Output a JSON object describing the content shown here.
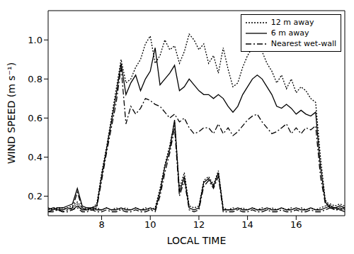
{
  "chart_data": {
    "type": "line",
    "xlabel": "LOCAL TIME",
    "ylabel": "WIND SPEED (m s⁻¹)",
    "legend": "upper right",
    "xlim": [
      5.8,
      18.0
    ],
    "xticks": [
      8,
      10,
      12,
      14,
      16
    ],
    "ylim": [
      0.1,
      1.15
    ],
    "yticks": [
      0.2,
      0.4,
      0.6,
      0.8,
      {
        "value": 1,
        "label": "1.0"
      }
    ],
    "x": [
      5.8,
      6.0,
      6.2,
      6.4,
      6.6,
      6.8,
      7.0,
      7.2,
      7.4,
      7.6,
      7.8,
      8.0,
      8.2,
      8.4,
      8.6,
      8.8,
      9.0,
      9.2,
      9.4,
      9.6,
      9.8,
      10.0,
      10.2,
      10.4,
      10.6,
      10.8,
      11.0,
      11.2,
      11.4,
      11.6,
      11.8,
      12.0,
      12.2,
      12.4,
      12.6,
      12.8,
      13.0,
      13.2,
      13.4,
      13.6,
      13.8,
      14.0,
      14.2,
      14.4,
      14.6,
      14.8,
      15.0,
      15.2,
      15.4,
      15.6,
      15.8,
      16.0,
      16.2,
      16.4,
      16.6,
      16.8,
      17.0,
      17.2,
      17.4,
      17.6,
      17.8,
      18.0
    ],
    "series": [
      {
        "name": "12 m away",
        "color": "#000000",
        "line_style": "dotted",
        "values": [
          0.13,
          0.14,
          0.14,
          0.13,
          0.14,
          0.15,
          0.17,
          0.14,
          0.13,
          0.14,
          0.16,
          0.32,
          0.45,
          0.6,
          0.75,
          0.9,
          0.78,
          0.8,
          0.86,
          0.9,
          0.98,
          1.02,
          0.88,
          0.92,
          1.0,
          0.95,
          0.97,
          0.88,
          0.94,
          1.03,
          1.0,
          0.95,
          0.98,
          0.88,
          0.92,
          0.83,
          0.96,
          0.85,
          0.76,
          0.78,
          0.86,
          0.92,
          0.96,
          0.98,
          0.94,
          0.88,
          0.84,
          0.78,
          0.82,
          0.75,
          0.8,
          0.73,
          0.76,
          0.74,
          0.7,
          0.68,
          0.4,
          0.18,
          0.15,
          0.14,
          0.15,
          0.14
        ]
      },
      {
        "name": "6 m away",
        "color": "#000000",
        "line_style": "solid",
        "values": [
          0.14,
          0.13,
          0.14,
          0.14,
          0.15,
          0.16,
          0.24,
          0.15,
          0.14,
          0.14,
          0.15,
          0.3,
          0.44,
          0.58,
          0.72,
          0.88,
          0.72,
          0.78,
          0.82,
          0.74,
          0.8,
          0.84,
          0.96,
          0.77,
          0.8,
          0.83,
          0.87,
          0.74,
          0.76,
          0.8,
          0.77,
          0.74,
          0.72,
          0.72,
          0.7,
          0.72,
          0.7,
          0.66,
          0.63,
          0.66,
          0.72,
          0.76,
          0.8,
          0.82,
          0.8,
          0.76,
          0.72,
          0.66,
          0.65,
          0.67,
          0.65,
          0.62,
          0.64,
          0.62,
          0.61,
          0.63,
          0.35,
          0.17,
          0.14,
          0.14,
          0.13,
          0.14
        ]
      },
      {
        "name": "Nearest wet-wall",
        "color": "#000000",
        "line_style": "dashdot",
        "values": [
          0.12,
          0.13,
          0.13,
          0.12,
          0.13,
          0.14,
          0.22,
          0.14,
          0.13,
          0.13,
          0.14,
          0.28,
          0.42,
          0.55,
          0.68,
          0.86,
          0.57,
          0.66,
          0.62,
          0.65,
          0.7,
          0.69,
          0.67,
          0.66,
          0.63,
          0.6,
          0.62,
          0.58,
          0.6,
          0.55,
          0.52,
          0.53,
          0.55,
          0.55,
          0.52,
          0.57,
          0.52,
          0.55,
          0.51,
          0.53,
          0.56,
          0.59,
          0.61,
          0.62,
          0.58,
          0.55,
          0.52,
          0.53,
          0.55,
          0.57,
          0.52,
          0.55,
          0.52,
          0.55,
          0.54,
          0.56,
          0.3,
          0.16,
          0.14,
          0.13,
          0.13,
          0.12
        ]
      },
      {
        "color": "#000000",
        "line_style": "dotted",
        "values": [
          0.14,
          0.13,
          0.14,
          0.14,
          0.13,
          0.14,
          0.16,
          0.13,
          0.14,
          0.13,
          0.14,
          0.13,
          0.14,
          0.13,
          0.14,
          0.13,
          0.14,
          0.13,
          0.14,
          0.13,
          0.14,
          0.13,
          0.14,
          0.24,
          0.36,
          0.46,
          0.58,
          0.24,
          0.32,
          0.15,
          0.14,
          0.15,
          0.28,
          0.3,
          0.26,
          0.33,
          0.14,
          0.13,
          0.14,
          0.13,
          0.14,
          0.13,
          0.14,
          0.13,
          0.14,
          0.13,
          0.14,
          0.13,
          0.14,
          0.13,
          0.14,
          0.13,
          0.14,
          0.13,
          0.14,
          0.13,
          0.14,
          0.15,
          0.16,
          0.15,
          0.16,
          0.15
        ]
      },
      {
        "color": "#000000",
        "line_style": "solid",
        "values": [
          0.13,
          0.14,
          0.13,
          0.13,
          0.14,
          0.13,
          0.15,
          0.13,
          0.13,
          0.14,
          0.13,
          0.13,
          0.14,
          0.13,
          0.13,
          0.14,
          0.13,
          0.13,
          0.14,
          0.13,
          0.13,
          0.14,
          0.13,
          0.22,
          0.35,
          0.44,
          0.59,
          0.22,
          0.3,
          0.14,
          0.13,
          0.14,
          0.27,
          0.29,
          0.25,
          0.32,
          0.13,
          0.13,
          0.13,
          0.14,
          0.13,
          0.13,
          0.14,
          0.13,
          0.13,
          0.14,
          0.13,
          0.13,
          0.14,
          0.13,
          0.13,
          0.14,
          0.13,
          0.13,
          0.14,
          0.13,
          0.13,
          0.14,
          0.15,
          0.14,
          0.15,
          0.14
        ]
      },
      {
        "color": "#000000",
        "line_style": "dashdot",
        "values": [
          0.12,
          0.12,
          0.13,
          0.12,
          0.12,
          0.13,
          0.14,
          0.12,
          0.12,
          0.13,
          0.12,
          0.12,
          0.13,
          0.12,
          0.12,
          0.13,
          0.12,
          0.12,
          0.13,
          0.12,
          0.12,
          0.13,
          0.12,
          0.2,
          0.32,
          0.42,
          0.55,
          0.2,
          0.28,
          0.13,
          0.12,
          0.13,
          0.25,
          0.28,
          0.24,
          0.3,
          0.12,
          0.12,
          0.12,
          0.13,
          0.12,
          0.12,
          0.13,
          0.12,
          0.12,
          0.13,
          0.12,
          0.12,
          0.13,
          0.12,
          0.12,
          0.13,
          0.12,
          0.12,
          0.13,
          0.12,
          0.12,
          0.13,
          0.14,
          0.13,
          0.14,
          0.13
        ]
      }
    ]
  }
}
